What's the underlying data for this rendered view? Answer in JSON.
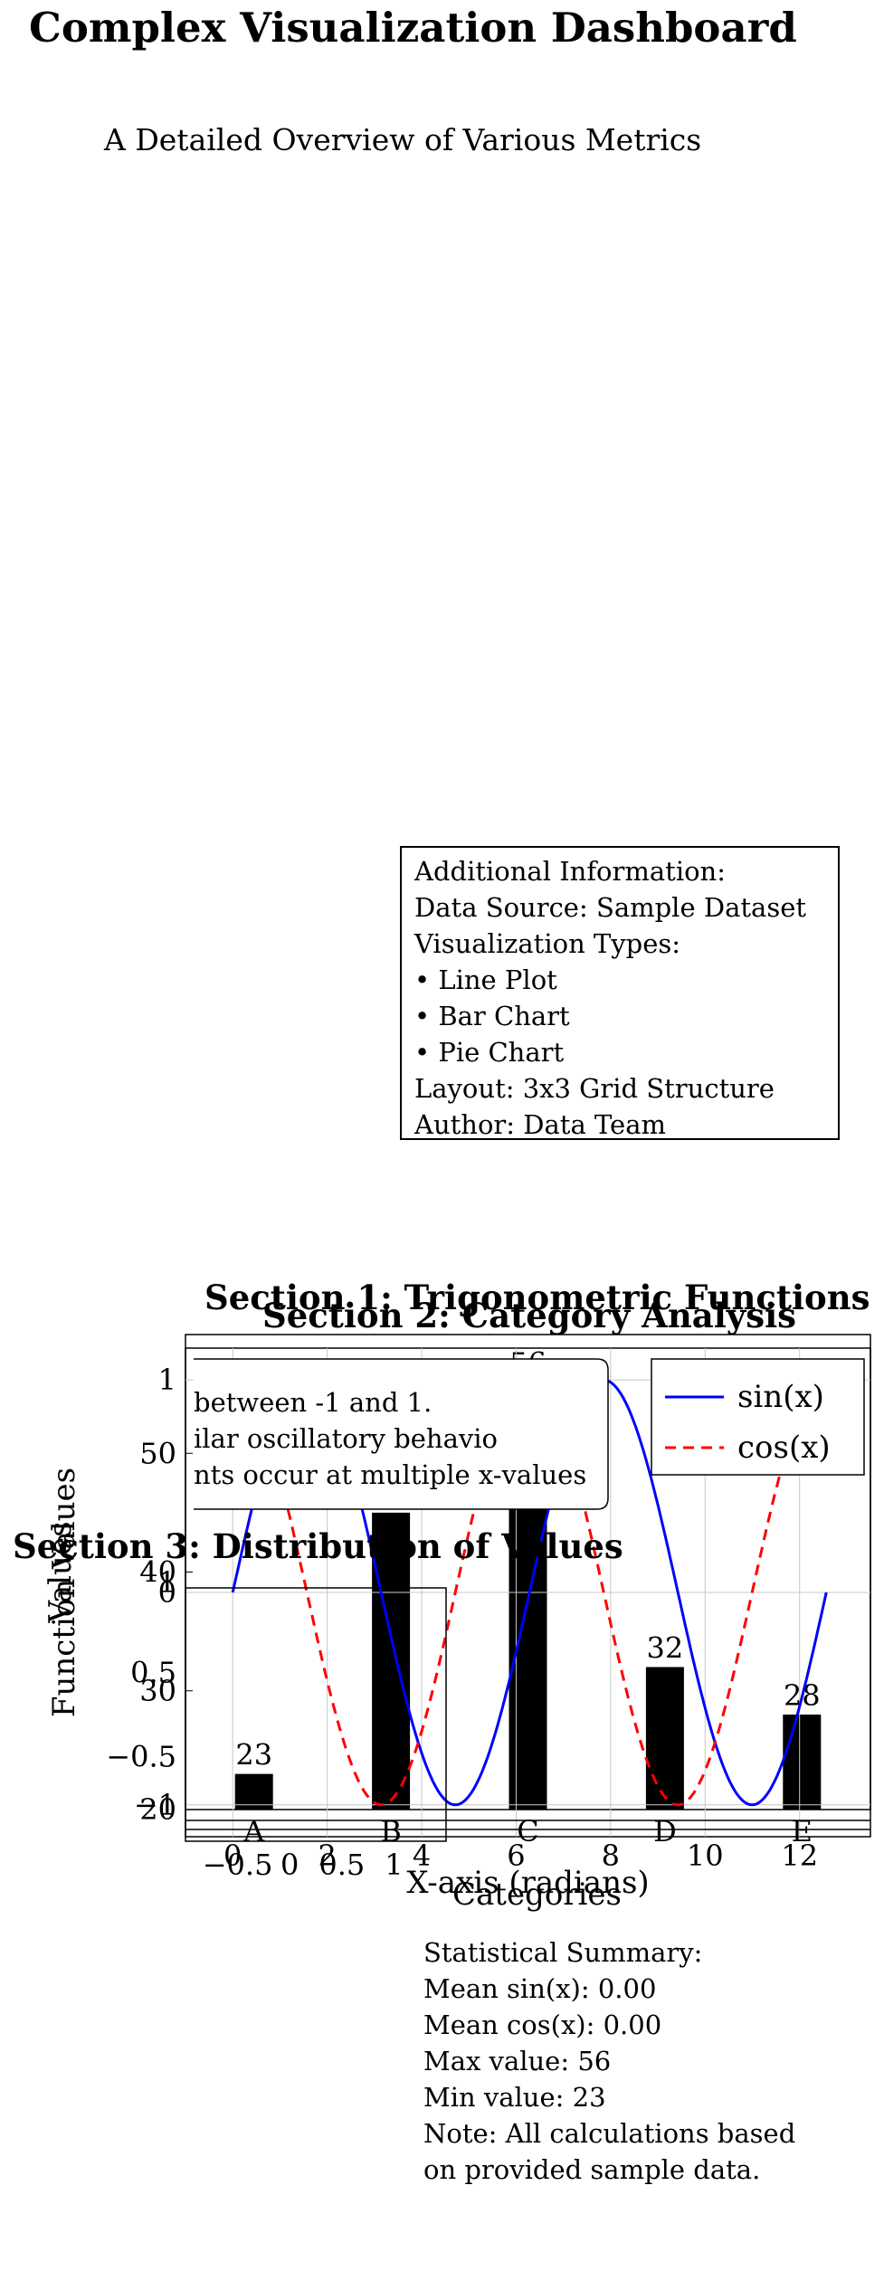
{
  "page": {
    "title": "Complex Visualization Dashboard",
    "subtitle": "A Detailed Overview of Various Metrics"
  },
  "info_box": {
    "lines": [
      "Additional Information:",
      "Data Source: Sample Dataset",
      "Visualization Types:",
      "• Line Plot",
      "• Bar Chart",
      "• Pie Chart",
      "Layout: 3x3 Grid Structure",
      "Author: Data Team"
    ]
  },
  "sections": {
    "s1": "Section 1: Trigonometric Functions",
    "s2": "Section 2: Category Analysis",
    "s3": "Section 3: Distribution of Values"
  },
  "stats_box": {
    "lines": [
      "Statistical Summary:",
      "Mean sin(x): 0.00",
      "Mean cos(x): 0.00",
      "Max value: 56",
      "Min value: 23",
      "Note: All calculations based",
      "on provided sample data."
    ]
  },
  "chart_data": [
    {
      "type": "line",
      "title": "Section 1: Trigonometric Functions",
      "xlabel": "X-axis (radians)",
      "ylabel": "Function Values",
      "xlim": [
        -1,
        13.5
      ],
      "ylim": [
        -1.15,
        1.15
      ],
      "xticks": [
        0,
        2,
        4,
        6,
        8,
        10,
        12
      ],
      "yticks": [
        -1,
        0,
        1
      ],
      "ytick_labels": [
        "−1",
        "0",
        "1"
      ],
      "grid": true,
      "legend_position": "top-right",
      "series": [
        {
          "name": "sin(x)",
          "function": "sin",
          "x_range": [
            0,
            12.566
          ],
          "color": "#0000ff",
          "dash": "solid"
        },
        {
          "name": "cos(x)",
          "function": "cos",
          "x_range": [
            0,
            12.566
          ],
          "color": "#ff0000",
          "dash": "dashed"
        }
      ],
      "annotation_lines": [
        "between -1 and 1.",
        "ilar oscillatory behavio",
        "nts occur at multiple x-values"
      ]
    },
    {
      "type": "bar",
      "title": "Section 2: Category Analysis",
      "xlabel": "Categories",
      "ylabel": "Values",
      "categories": [
        "A",
        "B",
        "C",
        "D",
        "E"
      ],
      "values": [
        23,
        45,
        56,
        32,
        28
      ],
      "ylim": [
        20,
        60
      ],
      "yticks": [
        20,
        30,
        40,
        50
      ],
      "bar_color": "#000000"
    },
    {
      "type": "scatter",
      "title": "Section 3: Distribution of Values",
      "xlim": [
        -1,
        1.5
      ],
      "ylim": [
        -1.5,
        1.5
      ],
      "xticks": [
        -0.5,
        0,
        0.5,
        1
      ],
      "xtick_labels": [
        "−0.5",
        "0",
        "0.5",
        "1"
      ],
      "yticks": [
        -0.5,
        0.5
      ],
      "ytick_labels": [
        "−0.5",
        "0.5"
      ]
    }
  ]
}
